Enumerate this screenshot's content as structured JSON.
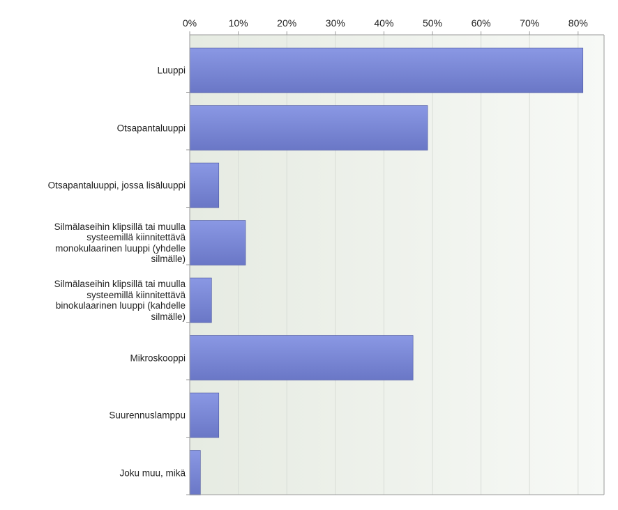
{
  "chart_data": {
    "type": "bar",
    "orientation": "horizontal",
    "categories": [
      "Luuppi",
      "Otsapantaluuppi",
      "Otsapantaluuppi, jossa lisäluuppi",
      "Silmälaseihin klipsillä tai muulla systeemillä kiinnitettävä monokulaarinen luuppi (yhdelle silmälle)",
      "Silmälaseihin klipsillä tai muulla systeemillä kiinnitettävä binokulaarinen luuppi (kahdelle silmälle)",
      "Mikroskooppi",
      "Suurennuslamppu",
      "Joku muu, mikä"
    ],
    "category_lines": [
      [
        "Luuppi"
      ],
      [
        "Otsapantaluuppi"
      ],
      [
        "Otsapantaluuppi, jossa lisäluuppi"
      ],
      [
        "Silmälaseihin klipsillä tai muulla",
        "systeemillä kiinnitettävä",
        "monokulaarinen luuppi (yhdelle",
        "silmälle)"
      ],
      [
        "Silmälaseihin klipsillä tai muulla",
        "systeemillä kiinnitettävä",
        "binokulaarinen luuppi (kahdelle",
        "silmälle)"
      ],
      [
        "Mikroskooppi"
      ],
      [
        "Suurennuslamppu"
      ],
      [
        "Joku muu, mikä"
      ]
    ],
    "values": [
      81,
      49,
      6,
      11.5,
      4.5,
      46,
      6,
      2.2
    ],
    "x_ticks": [
      "0%",
      "10%",
      "20%",
      "30%",
      "40%",
      "50%",
      "60%",
      "70%",
      "80%"
    ],
    "xlim": [
      0,
      85
    ],
    "grid": true,
    "x_axis_position": "top",
    "title": "",
    "xlabel": "",
    "ylabel": "",
    "colors": {
      "bar_top": "#8a98e4",
      "bar_bottom": "#6a77c6",
      "bar_edge": "#4d58a0",
      "plot_bg_left": "#e6ebe2",
      "plot_bg_right": "#f7f9f6",
      "grid": "#d8dcd6",
      "axis": "#9a9a9a"
    }
  }
}
